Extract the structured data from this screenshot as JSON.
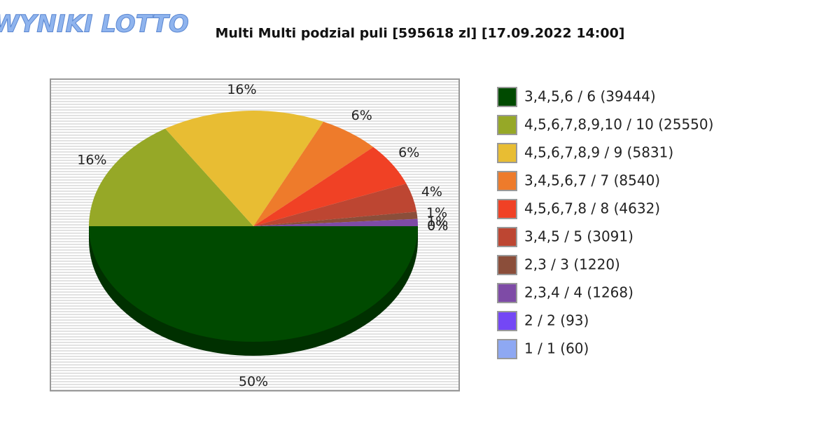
{
  "logo": "WYNIKI LOTTO",
  "chart_data": {
    "type": "pie",
    "title": "Multi Multi podzial puli [595618 zl] [17.09.2022 14:00]",
    "categories": [
      "3,4,5,6 / 6 (39444)",
      "4,5,6,7,8,9,10 / 10 (25550)",
      "4,5,6,7,8,9 / 9 (5831)",
      "3,4,5,6,7 / 7 (8540)",
      "4,5,6,7,8 / 8 (4632)",
      "3,4,5 / 5 (3091)",
      "2,3 / 3 (1220)",
      "2,3,4 / 4 (1268)",
      "2 / 2 (93)",
      "1 / 1 (60)"
    ],
    "values": [
      50,
      16,
      16,
      6,
      6,
      4,
      1,
      1,
      0,
      0
    ],
    "value_labels": [
      "50%",
      "16%",
      "16%",
      "6%",
      "6%",
      "4%",
      "1%",
      "1%",
      "0%",
      "0%"
    ],
    "colors": [
      "#004a00",
      "#96a827",
      "#e8bd33",
      "#ee7b2b",
      "#f04125",
      "#bd4632",
      "#8b4e3a",
      "#7e4ba6",
      "#7447f5",
      "#8ea8f3"
    ],
    "legend": "right"
  }
}
